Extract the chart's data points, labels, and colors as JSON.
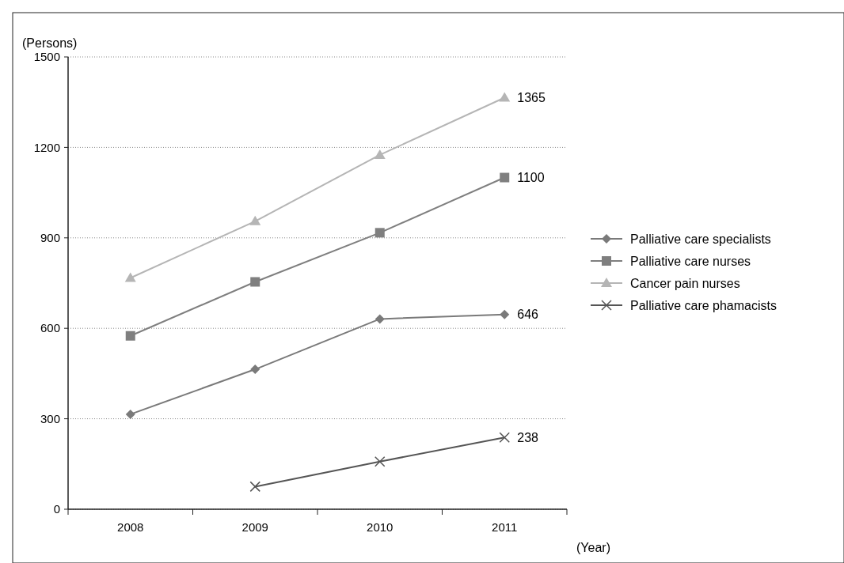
{
  "chart_data": {
    "type": "line",
    "ylabel": "(Persons)",
    "xlabel": "(Year)",
    "categories": [
      "2008",
      "2009",
      "2010",
      "2011"
    ],
    "ylim": [
      0,
      1500
    ],
    "yticks": [
      0,
      300,
      600,
      900,
      1200,
      1500
    ],
    "grid": "y",
    "legend": "right",
    "series": [
      {
        "name": "Palliative care specialists",
        "color": "#7a7a7a",
        "marker": "diamond",
        "values": [
          315,
          464,
          631,
          646
        ],
        "value_labels": [
          null,
          null,
          null,
          "646"
        ]
      },
      {
        "name": "Palliative care nurses",
        "color": "#7f7f7f",
        "marker": "square",
        "values": [
          575,
          754,
          917,
          1100
        ],
        "value_labels": [
          null,
          null,
          null,
          "1100"
        ]
      },
      {
        "name": "Cancer pain nurses",
        "color": "#b5b5b5",
        "marker": "triangle",
        "values": [
          767,
          955,
          1175,
          1365
        ],
        "value_labels": [
          null,
          null,
          null,
          "1365"
        ]
      },
      {
        "name": "Palliative care phamacists",
        "color": "#555555",
        "marker": "cross",
        "values": [
          null,
          75,
          158,
          238
        ],
        "value_labels": [
          null,
          null,
          null,
          "238"
        ]
      }
    ]
  }
}
